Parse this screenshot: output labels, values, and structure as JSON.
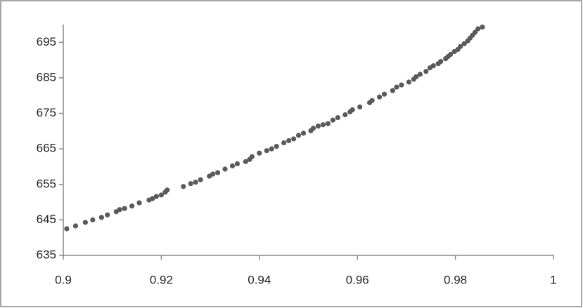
{
  "chart_data": {
    "type": "scatter",
    "color": "#5a5a5a",
    "x": [
      0.9007,
      0.9025,
      0.9045,
      0.906,
      0.9078,
      0.909,
      0.9108,
      0.9115,
      0.9125,
      0.914,
      0.9155,
      0.9175,
      0.9182,
      0.919,
      0.92,
      0.9208,
      0.9212,
      0.9245,
      0.926,
      0.927,
      0.928,
      0.9298,
      0.9305,
      0.9315,
      0.933,
      0.9345,
      0.9355,
      0.9372,
      0.938,
      0.9385,
      0.94,
      0.9415,
      0.9425,
      0.9435,
      0.945,
      0.946,
      0.947,
      0.948,
      0.949,
      0.9505,
      0.951,
      0.952,
      0.953,
      0.954,
      0.955,
      0.956,
      0.9575,
      0.9585,
      0.959,
      0.9605,
      0.9625,
      0.963,
      0.9645,
      0.9655,
      0.9672,
      0.968,
      0.969,
      0.9705,
      0.9715,
      0.972,
      0.9728,
      0.974,
      0.9748,
      0.9755,
      0.9765,
      0.977,
      0.978,
      0.9785,
      0.979,
      0.9798,
      0.9805,
      0.981,
      0.9818,
      0.9825,
      0.983,
      0.9835,
      0.984,
      0.9846,
      0.9855
    ],
    "y": [
      642.5,
      643.3,
      644.3,
      645,
      645.7,
      646.4,
      647.3,
      647.9,
      648.2,
      648.9,
      649.8,
      650.6,
      651,
      651.6,
      652,
      652.8,
      653.4,
      654.4,
      655.2,
      655.6,
      656.3,
      657.3,
      657.9,
      658.3,
      659.3,
      660.2,
      660.8,
      661.4,
      662,
      662.8,
      663.8,
      664.5,
      665,
      665.7,
      666.7,
      667.3,
      667.8,
      668.8,
      669.4,
      670.1,
      670.8,
      671.4,
      671.8,
      672.1,
      673.1,
      673.8,
      674.6,
      675.4,
      676,
      676.8,
      678,
      678.6,
      679.6,
      680.4,
      681.4,
      682.4,
      683,
      683.8,
      684.6,
      685.3,
      686,
      686.8,
      687.8,
      688.4,
      689,
      689.6,
      690.4,
      691,
      691.6,
      692.4,
      693,
      693.8,
      694.6,
      695.4,
      696.2,
      697,
      697.8,
      698.8,
      699.3
    ],
    "xlim": [
      0.9,
      1
    ],
    "xticks": [
      0.9,
      0.92,
      0.94,
      0.96,
      0.98,
      1
    ],
    "ylim": [
      635,
      700
    ],
    "yticks": [
      635,
      645,
      655,
      665,
      675,
      685,
      695
    ]
  }
}
